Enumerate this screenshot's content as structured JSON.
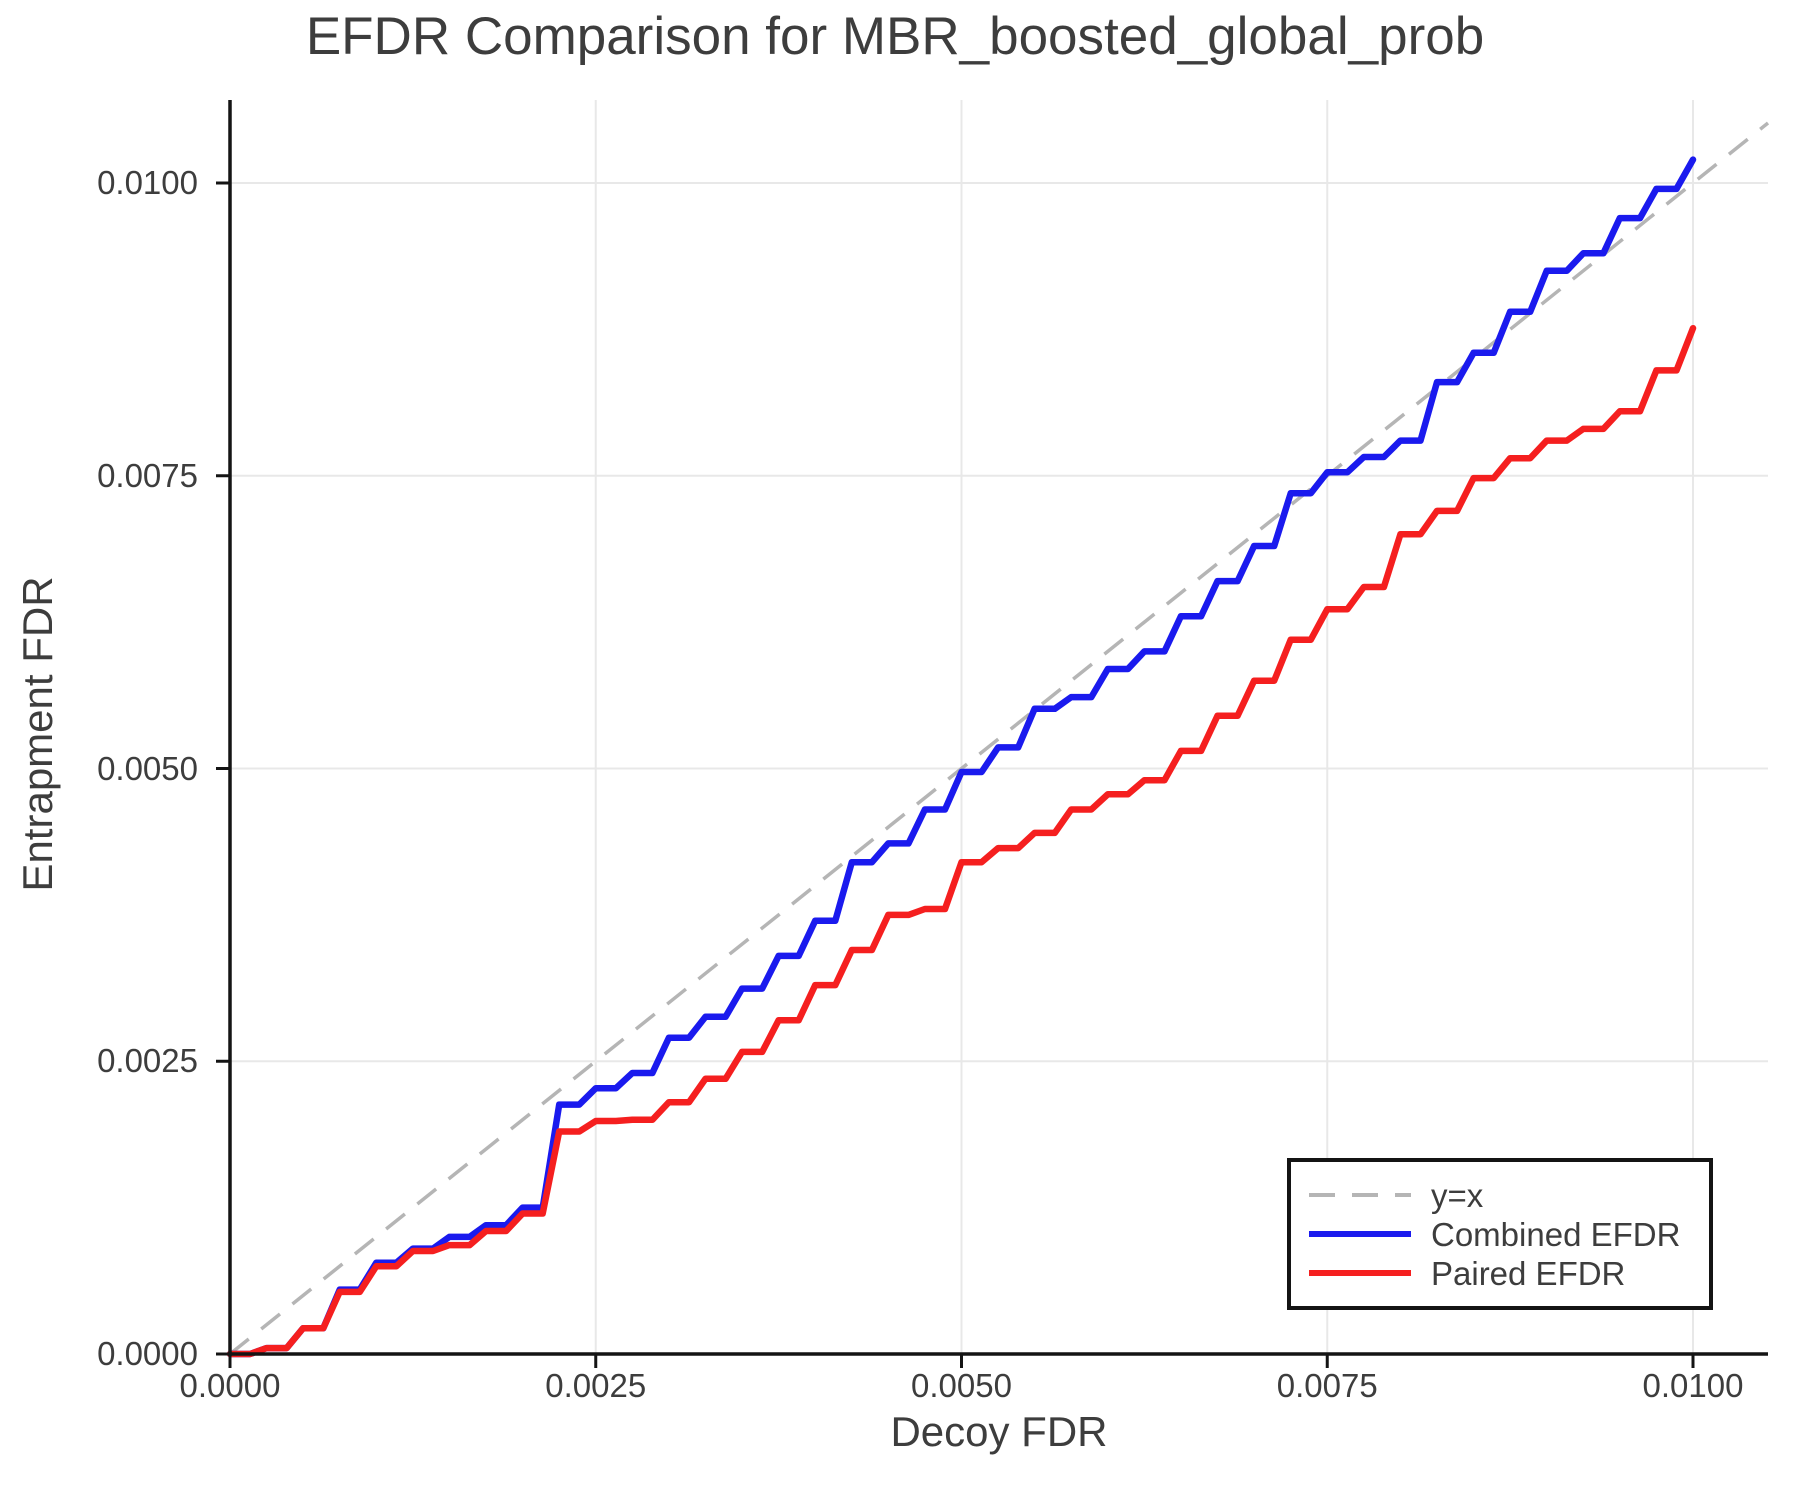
{
  "title": "EFDR Comparison for MBR_boosted_global_prob",
  "axes": {
    "x_label": "Decoy FDR",
    "y_label": "Entrapment FDR",
    "x_tick_labels": [
      "0.0000",
      "0.0025",
      "0.0050",
      "0.0075",
      "0.0100"
    ],
    "y_tick_labels": [
      "0.0000",
      "0.0025",
      "0.0050",
      "0.0075",
      "0.0100"
    ],
    "x_tick_values": [
      0.0,
      0.0025,
      0.005,
      0.0075,
      0.01
    ],
    "y_tick_values": [
      0.0,
      0.0025,
      0.005,
      0.0075,
      0.01
    ]
  },
  "legend": {
    "items": [
      {
        "label": "y=x",
        "color": "#b5b5b5",
        "dashed": true
      },
      {
        "label": "Combined EFDR",
        "color": "#1a1aee",
        "dashed": false
      },
      {
        "label": "Paired EFDR",
        "color": "#f51f1f",
        "dashed": false
      }
    ]
  },
  "colors": {
    "grid": "#e8e8e8",
    "spine": "#141414",
    "text": "#3d3d3d",
    "reference": "#b5b5b5",
    "combined": "#1a1aee",
    "paired": "#f51f1f"
  },
  "chart_data": {
    "type": "line",
    "title": "EFDR Comparison for MBR_boosted_global_prob",
    "xlabel": "Decoy FDR",
    "ylabel": "Entrapment FDR",
    "xlim": [
      0.0,
      0.0105
    ],
    "ylim": [
      0.0,
      0.01075
    ],
    "grid": true,
    "legend_position": "lower right",
    "x": [
      0.0,
      0.00025,
      0.0005,
      0.00075,
      0.001,
      0.00125,
      0.0015,
      0.00175,
      0.002,
      0.00225,
      0.0025,
      0.00275,
      0.003,
      0.00325,
      0.0035,
      0.00375,
      0.004,
      0.00425,
      0.0045,
      0.00475,
      0.005,
      0.00525,
      0.0055,
      0.00575,
      0.006,
      0.00625,
      0.0065,
      0.00675,
      0.007,
      0.00725,
      0.0075,
      0.00775,
      0.008,
      0.00825,
      0.0085,
      0.00875,
      0.009,
      0.00925,
      0.0095,
      0.00975,
      0.01
    ],
    "series": [
      {
        "name": "y=x",
        "role": "reference",
        "definition": "y equals x diagonal",
        "dashed": true
      },
      {
        "name": "Combined EFDR",
        "role": "data",
        "values": [
          0.0,
          5e-05,
          0.00022,
          0.00055,
          0.00078,
          0.0009,
          0.001,
          0.0011,
          0.00125,
          0.00213,
          0.00227,
          0.0024,
          0.0027,
          0.00288,
          0.00312,
          0.0034,
          0.0037,
          0.0042,
          0.00436,
          0.00465,
          0.00497,
          0.00518,
          0.00551,
          0.00561,
          0.00585,
          0.006,
          0.0063,
          0.0066,
          0.0069,
          0.00735,
          0.00753,
          0.00766,
          0.0078,
          0.0083,
          0.00855,
          0.0089,
          0.00925,
          0.0094,
          0.0097,
          0.00995,
          0.0102
        ]
      },
      {
        "name": "Paired EFDR",
        "role": "data",
        "values": [
          0.0,
          5e-05,
          0.00022,
          0.00053,
          0.00075,
          0.00088,
          0.00093,
          0.00105,
          0.0012,
          0.0019,
          0.00199,
          0.002,
          0.00215,
          0.00235,
          0.00258,
          0.00285,
          0.00315,
          0.00345,
          0.00375,
          0.0038,
          0.0042,
          0.00432,
          0.00445,
          0.00465,
          0.00478,
          0.0049,
          0.00515,
          0.00545,
          0.00575,
          0.0061,
          0.00636,
          0.00655,
          0.007,
          0.0072,
          0.00748,
          0.00765,
          0.0078,
          0.0079,
          0.00805,
          0.0084,
          0.00876
        ]
      }
    ]
  }
}
